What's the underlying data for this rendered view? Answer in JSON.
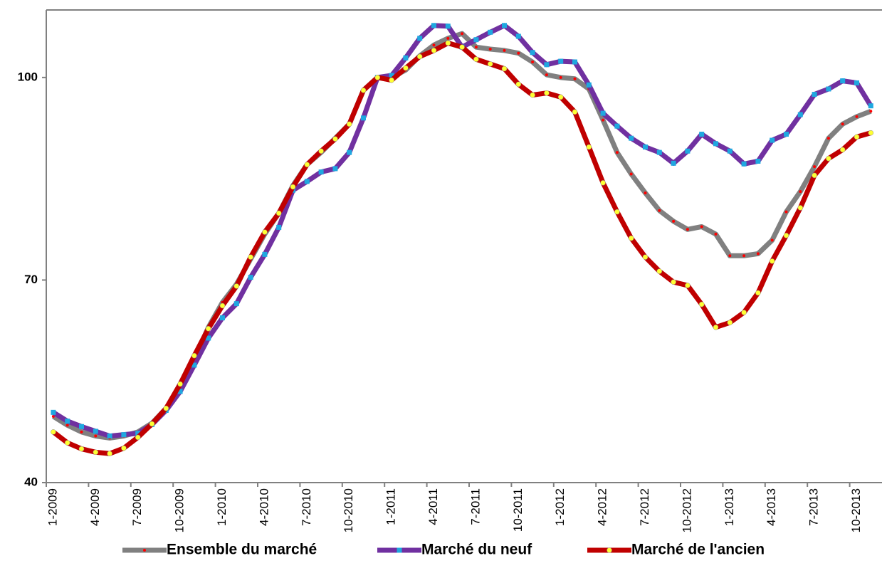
{
  "chart_data": {
    "type": "line",
    "categories": [
      "1-2009",
      null,
      null,
      "4-2009",
      null,
      null,
      "7-2009",
      null,
      null,
      "10-2009",
      null,
      null,
      "1-2010",
      null,
      null,
      "4-2010",
      null,
      null,
      "7-2010",
      null,
      null,
      "10-2010",
      null,
      null,
      "1-2011",
      null,
      null,
      "4-2011",
      null,
      null,
      "7-2011",
      null,
      null,
      "10-2011",
      null,
      null,
      "1-2012",
      null,
      null,
      "4-2012",
      null,
      null,
      "7-2012",
      null,
      null,
      "10-2012",
      null,
      null,
      "1-2013",
      null,
      null,
      "4-2013",
      null,
      null,
      "7-2013",
      null,
      null,
      "10-2013",
      null
    ],
    "series": [
      {
        "name": "Ensemble du marché",
        "color": "#808080",
        "marker": "dot",
        "marker_color": "#ff0000",
        "values": [
          49.8,
          48.5,
          47.5,
          46.9,
          46.6,
          46.9,
          47.5,
          48.8,
          51,
          54,
          58.3,
          63,
          66.7,
          69.4,
          73.1,
          76.8,
          79.9,
          84,
          87.1,
          88.9,
          91,
          93.1,
          98.1,
          100,
          100,
          101.1,
          103.2,
          104.8,
          105.8,
          106.5,
          104.5,
          104.2,
          104,
          103.6,
          102.3,
          100.4,
          100,
          99.8,
          98.3,
          93.7,
          88.9,
          85.7,
          82.9,
          80.3,
          78.7,
          77.5,
          77.9,
          76.8,
          73.6,
          73.6,
          73.9,
          75.9,
          80.1,
          83.1,
          86.8,
          91,
          93.1,
          94.2,
          95
        ]
      },
      {
        "name": "Marché du neuf",
        "color": "#7030a0",
        "marker": "square",
        "marker_color": "#1fa8e0",
        "values": [
          50.4,
          49.1,
          48.3,
          47.6,
          46.9,
          47.1,
          47.3,
          48.6,
          50.7,
          53.5,
          57.4,
          61.4,
          64.4,
          66.5,
          70.4,
          73.8,
          77.8,
          83.3,
          84.6,
          86,
          86.5,
          88.9,
          94,
          100,
          100.3,
          102.9,
          105.8,
          107.7,
          107.6,
          104.5,
          105.6,
          106.7,
          107.7,
          106.1,
          103.7,
          101.9,
          102.4,
          102.3,
          98.9,
          94.7,
          92.8,
          91,
          89.7,
          88.9,
          87.3,
          89.1,
          91.6,
          90.2,
          89.1,
          87.2,
          87.6,
          90.7,
          91.6,
          94.5,
          97.5,
          98.3,
          99.5,
          99.2,
          95.8
        ]
      },
      {
        "name": "Marché de l'ancien",
        "color": "#c00000",
        "marker": "circle",
        "marker_color": "#ffff33",
        "values": [
          47.5,
          45.9,
          45,
          44.5,
          44.3,
          45.1,
          46.7,
          48.7,
          51,
          54.6,
          58.8,
          62.8,
          66.2,
          69.1,
          73.4,
          77.1,
          79.9,
          83.8,
          87.1,
          89.1,
          90.9,
          93.1,
          98.1,
          100,
          99.6,
          101.4,
          103.1,
          104,
          105.1,
          104.5,
          102.7,
          102,
          101.3,
          99,
          97.4,
          97.7,
          97.1,
          94.9,
          89.7,
          84.4,
          80.1,
          76.2,
          73.4,
          71.3,
          69.7,
          69.2,
          66.4,
          63,
          63.7,
          65.2,
          68.1,
          72.8,
          76.6,
          80.7,
          85.5,
          88,
          89.3,
          91.2,
          91.8
        ]
      }
    ],
    "ylim": [
      40,
      110
    ],
    "yticks": [
      40,
      70,
      100
    ],
    "legend": "bottom"
  }
}
